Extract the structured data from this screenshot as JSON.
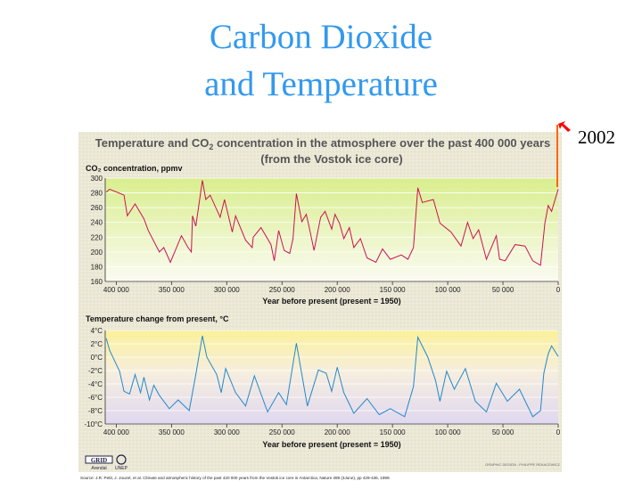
{
  "slide": {
    "title_line1": "Carbon Dioxide",
    "title_line2": "and Temperature",
    "annotation_year": "2002",
    "annotation_color": "#ff0000",
    "annotation_line_color": "#ff6600"
  },
  "figure": {
    "heading_line1": "Temperature and CO",
    "heading_sub": "2",
    "heading_line1_rest": " concentration in the atmosphere over the past 400 000 years",
    "heading_line2": "(from the Vostok ice core)",
    "logo_grid": "GRID Arendal",
    "logo_unep": "UNEP",
    "credit": "GRAPHIC DESIGN : PHILIPPE REKACEWICZ",
    "source": "Source: J.R. Petit, J. Jouzel, et al. Climate and atmospheric history of the past 420 000 years from the Vostok ice core in Antarctica, Nature 399 (3June), pp 429-436, 1999."
  },
  "chart_data": [
    {
      "type": "line",
      "ylabel": "CO₂ concentration, ppmv",
      "xlabel": "Year before present (present = 1950)",
      "x_ticks": [
        "400 000",
        "350 000",
        "300 000",
        "250 000",
        "200 000",
        "150 000",
        "100 000",
        "50 000",
        "0"
      ],
      "x_tick_values": [
        400000,
        350000,
        300000,
        250000,
        200000,
        150000,
        100000,
        50000,
        0
      ],
      "y_ticks": [
        "300",
        "280",
        "260",
        "240",
        "220",
        "200",
        "180",
        "160"
      ],
      "y_tick_values": [
        300,
        280,
        260,
        240,
        220,
        200,
        180,
        160
      ],
      "xlim": [
        410000,
        0
      ],
      "ylim": [
        160,
        300
      ],
      "grid": true,
      "color": "#cc1155",
      "x": [
        409000,
        406000,
        393000,
        390000,
        383000,
        375000,
        371000,
        361000,
        357000,
        351000,
        341000,
        335000,
        332000,
        331000,
        328000,
        322000,
        319000,
        315000,
        306000,
        302000,
        295000,
        292000,
        283000,
        277000,
        276000,
        269000,
        260000,
        257000,
        253000,
        248000,
        243000,
        240000,
        237000,
        232000,
        228000,
        225000,
        221000,
        215000,
        211000,
        205000,
        202000,
        198000,
        194000,
        189000,
        185000,
        179000,
        173000,
        165000,
        159000,
        152000,
        142000,
        136000,
        131000,
        127000,
        123000,
        113000,
        107000,
        97000,
        88000,
        82000,
        77000,
        72000,
        65000,
        56000,
        53000,
        48000,
        39000,
        30000,
        23000,
        16000,
        12000,
        9000,
        6000,
        0
      ],
      "y": [
        281,
        285,
        277,
        249,
        265,
        245,
        229,
        200,
        206,
        186,
        222,
        206,
        200,
        249,
        235,
        297,
        271,
        277,
        247,
        271,
        227,
        249,
        216,
        206,
        220,
        233,
        210,
        188,
        229,
        202,
        198,
        218,
        279,
        241,
        251,
        231,
        202,
        247,
        255,
        231,
        251,
        239,
        218,
        233,
        206,
        218,
        192,
        186,
        204,
        190,
        196,
        190,
        206,
        287,
        267,
        271,
        239,
        227,
        208,
        240,
        218,
        230,
        190,
        222,
        190,
        188,
        210,
        208,
        188,
        182,
        239,
        263,
        255,
        285
      ]
    },
    {
      "type": "line",
      "ylabel": "Temperature change from present, °C",
      "xlabel": "Year before present (present = 1950)",
      "x_ticks": [
        "400 000",
        "350 000",
        "300 000",
        "250 000",
        "200 000",
        "150 000",
        "100 000",
        "50 000",
        "0"
      ],
      "x_tick_values": [
        400000,
        350000,
        300000,
        250000,
        200000,
        150000,
        100000,
        50000,
        0
      ],
      "y_ticks": [
        "4°C",
        "2°C",
        "0°C",
        "-2°C",
        "-4°C",
        "-6°C",
        "-8°C",
        "-10°C"
      ],
      "y_tick_values": [
        4,
        2,
        0,
        -2,
        -4,
        -6,
        -8,
        -10
      ],
      "xlim": [
        410000,
        0
      ],
      "ylim": [
        -10,
        4
      ],
      "grid": true,
      "color": "#2288cc",
      "x": [
        409000,
        406000,
        397000,
        393000,
        388000,
        383000,
        378000,
        375000,
        370000,
        366000,
        361000,
        352000,
        344000,
        334000,
        328000,
        322000,
        318000,
        309000,
        305000,
        301000,
        292000,
        283000,
        275000,
        263000,
        253000,
        246000,
        237000,
        227000,
        217000,
        210000,
        205000,
        200000,
        194000,
        185000,
        173000,
        162000,
        152000,
        139000,
        131000,
        127000,
        118000,
        111000,
        107000,
        101000,
        94000,
        84000,
        75000,
        65000,
        56000,
        46000,
        35000,
        23000,
        16000,
        13000,
        9000,
        6000,
        0
      ],
      "y": [
        2.8,
        1.0,
        -2.1,
        -5.1,
        -5.5,
        -2.6,
        -5.3,
        -3.0,
        -6.4,
        -4.2,
        -5.7,
        -7.7,
        -6.4,
        -8.0,
        -2.6,
        3.2,
        0.0,
        -2.6,
        -5.3,
        -1.7,
        -5.3,
        -7.3,
        -2.8,
        -8.2,
        -5.3,
        -7.1,
        2.1,
        -7.3,
        -1.9,
        -2.4,
        -5.1,
        -1.5,
        -5.3,
        -8.4,
        -6.2,
        -8.6,
        -7.7,
        -8.9,
        -4.4,
        3.0,
        0.0,
        -3.5,
        -6.6,
        -2.1,
        -4.8,
        -1.7,
        -6.6,
        -8.2,
        -3.9,
        -6.6,
        -4.8,
        -8.9,
        -8.0,
        -2.4,
        0.5,
        1.7,
        0.1
      ]
    }
  ]
}
